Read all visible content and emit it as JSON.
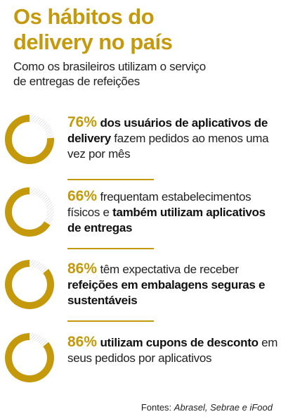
{
  "header": {
    "title_line1": "Os hábitos do",
    "title_line2": "delivery no país",
    "subtitle_line1": "Como os brasileiros utilizam o serviço",
    "subtitle_line2": "de entregas de refeições"
  },
  "colors": {
    "accent": "#c49a0c",
    "hatch": "#cfcfcf"
  },
  "items": [
    {
      "percent_text": "76%",
      "parts": [
        {
          "text": " dos usuários de aplicativos de delivery",
          "bold": true
        },
        {
          "text": " fazem pedidos ao menos uma vez por mês",
          "bold": false
        }
      ]
    },
    {
      "percent_text": "66%",
      "parts": [
        {
          "text": " frequentam estabelecimentos físicos e ",
          "bold": false
        },
        {
          "text": "também utilizam aplicativos de entregas",
          "bold": true
        }
      ]
    },
    {
      "percent_text": "86%",
      "parts": [
        {
          "text": " têm expectativa de receber ",
          "bold": false
        },
        {
          "text": "refeições em embalagens seguras e sustentáveis",
          "bold": true
        }
      ]
    },
    {
      "percent_text": "86%",
      "parts": [
        {
          "text": " utilizam cupons de desconto",
          "bold": true
        },
        {
          "text": " em seus pedidos por aplicativos",
          "bold": false
        }
      ]
    }
  ],
  "chart_data": {
    "type": "pie",
    "categories": [
      "76%",
      "66%",
      "86%",
      "86%"
    ],
    "values": [
      76,
      66,
      86,
      86
    ],
    "ylim": [
      0,
      100
    ]
  },
  "footer": {
    "source_label": "Fontes:",
    "source_list": "Abrasel, Sebrae e iFood"
  }
}
